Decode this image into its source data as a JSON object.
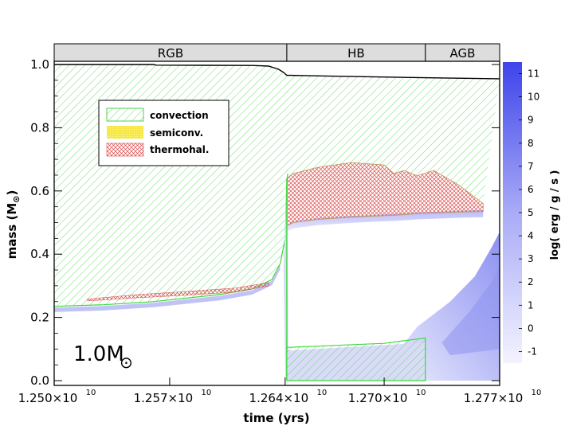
{
  "chart_data": {
    "type": "area",
    "title": "",
    "xlabel": "time (yrs)",
    "ylabel_main": "mass (M",
    "ylabel_sun": "⊙",
    "ylabel_close": ")",
    "xlim": [
      12500000000,
      12770000000
    ],
    "ylim": [
      0.0,
      1.02
    ],
    "x_ticks": [
      {
        "value": 12500000000,
        "mantissa": "1.250×10",
        "exp": "10"
      },
      {
        "value": 12570000000,
        "mantissa": "1.257×10",
        "exp": "10"
      },
      {
        "value": 12640000000,
        "mantissa": "1.264×10",
        "exp": "10"
      },
      {
        "value": 12700000000,
        "mantissa": "1.270×10",
        "exp": "10"
      },
      {
        "value": 12770000000,
        "mantissa": "1.277×10",
        "exp": "10"
      }
    ],
    "y_ticks": [
      {
        "value": 0.0,
        "label": "0.0"
      },
      {
        "value": 0.2,
        "label": "0.2"
      },
      {
        "value": 0.4,
        "label": "0.4"
      },
      {
        "value": 0.6,
        "label": "0.6"
      },
      {
        "value": 0.8,
        "label": "0.8"
      },
      {
        "value": 1.0,
        "label": "1.0"
      }
    ],
    "phases": [
      {
        "label": "RGB",
        "x0": 12500000000,
        "x1": 12641000000
      },
      {
        "label": "HB",
        "x0": 12641000000,
        "x1": 12725000000
      },
      {
        "label": "AGB",
        "x0": 12725000000,
        "x1": 12770000000
      }
    ],
    "annotation": {
      "text": "1.0M",
      "sun": "⊙"
    },
    "legend": {
      "position": "top-left",
      "items": [
        {
          "label": "convection",
          "pattern": "diag",
          "color": "#4fd14f"
        },
        {
          "label": "semiconv.",
          "pattern": "solid",
          "color": "#f6e84a"
        },
        {
          "label": "thermohal.",
          "pattern": "cross",
          "color": "#dc4a4a"
        }
      ]
    },
    "colorbar": {
      "label": "log( erg / g / s )",
      "min": -1,
      "max": 12,
      "ticks": [
        "-1",
        "0",
        "1",
        "2",
        "3",
        "4",
        "5",
        "6",
        "7",
        "8",
        "9",
        "10",
        "11"
      ]
    },
    "total_mass": [
      [
        12500000000,
        1.0
      ],
      [
        12560000000,
        1.0
      ],
      [
        12562000000,
        0.998
      ],
      [
        12620000000,
        0.997
      ],
      [
        12630000000,
        0.995
      ],
      [
        12636000000,
        0.985
      ],
      [
        12639000000,
        0.975
      ],
      [
        12641000000,
        0.966
      ],
      [
        12680000000,
        0.962
      ],
      [
        12740000000,
        0.957
      ],
      [
        12770000000,
        0.955
      ]
    ],
    "rgb_convective_envelope_base": [
      [
        12500000000,
        0.235
      ],
      [
        12530000000,
        0.24
      ],
      [
        12560000000,
        0.25
      ],
      [
        12600000000,
        0.272
      ],
      [
        12620000000,
        0.29
      ],
      [
        12632000000,
        0.32
      ],
      [
        12637000000,
        0.37
      ],
      [
        12640000000,
        0.45
      ],
      [
        12641000000,
        0.62
      ],
      [
        12641500000,
        0.655
      ]
    ],
    "rgb_thermohaline_zone": [
      [
        12520000000,
        0.252,
        0.258
      ],
      [
        12550000000,
        0.262,
        0.272
      ],
      [
        12580000000,
        0.27,
        0.282
      ],
      [
        12610000000,
        0.28,
        0.293
      ],
      [
        12630000000,
        0.3,
        0.31
      ]
    ],
    "hb_thermohaline_zone": [
      [
        12641000000,
        0.49,
        0.64
      ],
      [
        12645000000,
        0.5,
        0.655
      ],
      [
        12660000000,
        0.51,
        0.675
      ],
      [
        12680000000,
        0.517,
        0.69
      ],
      [
        12700000000,
        0.522,
        0.682
      ],
      [
        12706000000,
        0.523,
        0.655
      ],
      [
        12712000000,
        0.525,
        0.665
      ],
      [
        12720000000,
        0.528,
        0.648
      ],
      [
        12730000000,
        0.53,
        0.665
      ],
      [
        12745000000,
        0.533,
        0.62
      ],
      [
        12760000000,
        0.535,
        0.56
      ]
    ],
    "hb_convective_core": [
      [
        12641000000,
        0.0,
        0.105
      ],
      [
        12700000000,
        0.0,
        0.118
      ],
      [
        12725000000,
        0.0,
        0.135
      ]
    ],
    "hb_semiconvective_core": [
      [
        12641000000,
        0.0,
        0.095
      ],
      [
        12725000000,
        0.0,
        0.12
      ]
    ]
  }
}
